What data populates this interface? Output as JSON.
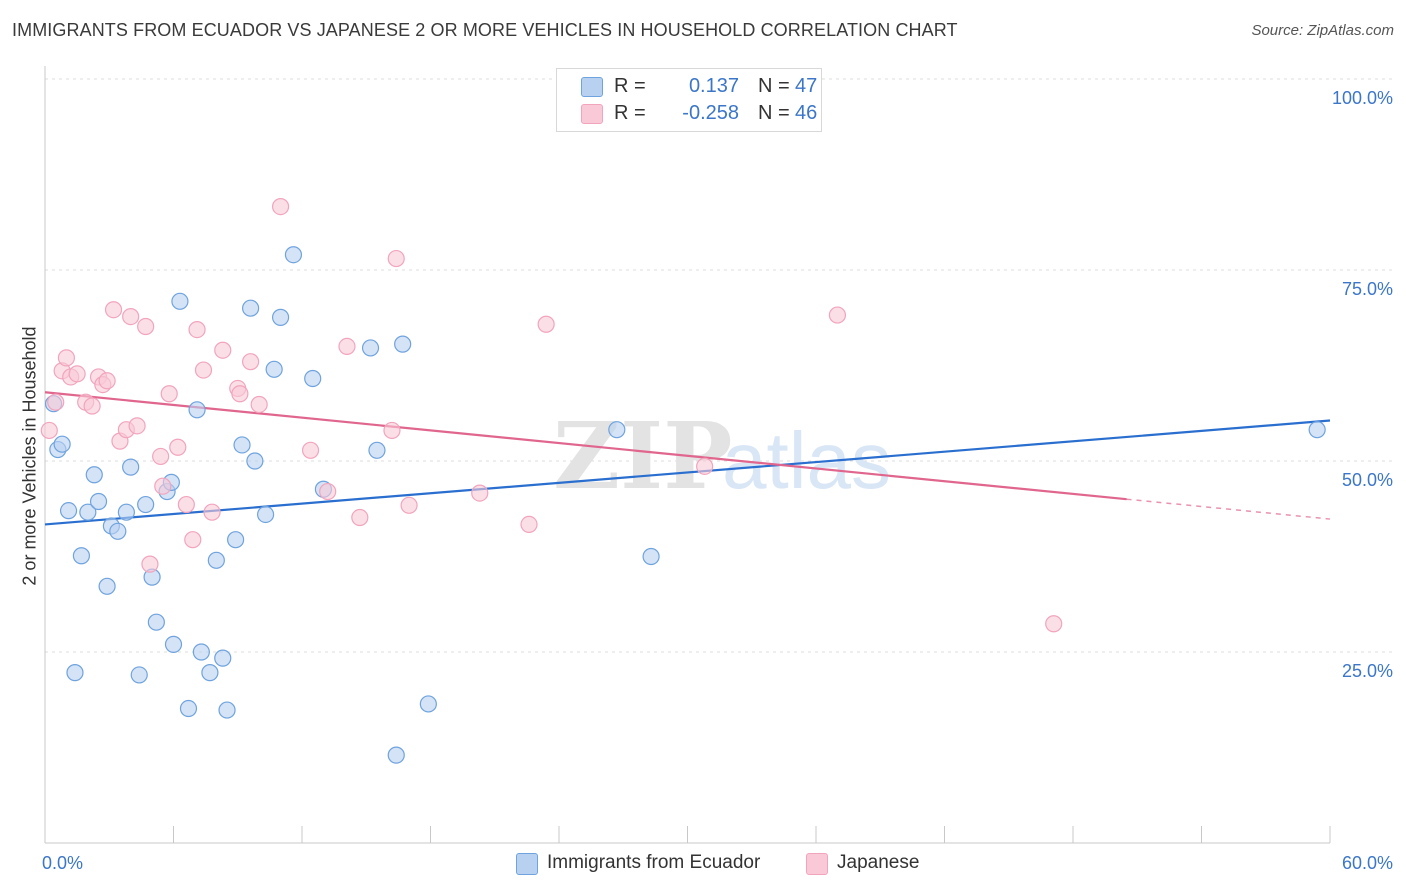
{
  "title": "IMMIGRANTS FROM ECUADOR VS JAPANESE 2 OR MORE VEHICLES IN HOUSEHOLD CORRELATION CHART",
  "source": "Source: ZipAtlas.com",
  "watermark": {
    "zip": "ZIP",
    "atlas": "atlas"
  },
  "legend": {
    "rows": [
      {
        "r_label": "R =",
        "r_value": "0.137",
        "n_label": "N =",
        "n_value": "47"
      },
      {
        "r_label": "R =",
        "r_value": "-0.258",
        "n_label": "N =",
        "n_value": "46"
      }
    ]
  },
  "bottom_legend": [
    "Immigrants from Ecuador",
    "Japanese"
  ],
  "chart_data": {
    "type": "scatter",
    "title": "IMMIGRANTS FROM ECUADOR VS JAPANESE 2 OR MORE VEHICLES IN HOUSEHOLD CORRELATION CHART",
    "xlabel": "",
    "ylabel": "2 or more Vehicles in Household",
    "xlim": [
      0,
      60
    ],
    "ylim": [
      0,
      100
    ],
    "x_tick_labels": [
      "0.0%",
      "60.0%"
    ],
    "y_ticks": [
      25,
      50,
      75,
      100
    ],
    "y_tick_labels": [
      "25.0%",
      "50.0%",
      "75.0%",
      "100.0%"
    ],
    "grid": true,
    "legend_position": "top-center",
    "series": [
      {
        "name": "Immigrants from Ecuador",
        "color": "#6fa3de",
        "fill": "#b9d1f1",
        "line_color": "#2a6fcf",
        "trend": {
          "x": [
            0,
            60
          ],
          "y": [
            41.7,
            55.3
          ]
        },
        "points": [
          [
            0.4,
            57.5
          ],
          [
            0.6,
            51.5
          ],
          [
            0.8,
            52.2
          ],
          [
            1.1,
            43.5
          ],
          [
            1.4,
            22.3
          ],
          [
            1.7,
            37.6
          ],
          [
            2.0,
            43.3
          ],
          [
            2.3,
            48.2
          ],
          [
            2.5,
            44.7
          ],
          [
            2.9,
            33.6
          ],
          [
            3.1,
            41.5
          ],
          [
            3.4,
            40.8
          ],
          [
            3.8,
            43.3
          ],
          [
            4.0,
            49.2
          ],
          [
            4.4,
            22.0
          ],
          [
            4.7,
            44.3
          ],
          [
            5.0,
            34.8
          ],
          [
            5.2,
            28.9
          ],
          [
            5.7,
            46.0
          ],
          [
            5.9,
            47.2
          ],
          [
            6.0,
            26.0
          ],
          [
            6.3,
            70.9
          ],
          [
            6.7,
            17.6
          ],
          [
            7.1,
            56.7
          ],
          [
            7.3,
            25.0
          ],
          [
            7.7,
            22.3
          ],
          [
            8.0,
            37.0
          ],
          [
            8.3,
            24.2
          ],
          [
            8.5,
            17.4
          ],
          [
            8.9,
            39.7
          ],
          [
            9.2,
            52.1
          ],
          [
            9.6,
            70.0
          ],
          [
            9.8,
            50.0
          ],
          [
            10.3,
            43.0
          ],
          [
            10.7,
            62.0
          ],
          [
            11.0,
            68.8
          ],
          [
            11.6,
            77.0
          ],
          [
            12.5,
            60.8
          ],
          [
            13.0,
            46.3
          ],
          [
            15.2,
            64.8
          ],
          [
            15.5,
            51.4
          ],
          [
            16.4,
            11.5
          ],
          [
            16.7,
            65.3
          ],
          [
            17.9,
            18.2
          ],
          [
            26.7,
            54.1
          ],
          [
            28.3,
            37.5
          ],
          [
            59.4,
            54.1
          ]
        ]
      },
      {
        "name": "Japanese",
        "color": "#f2a4bd",
        "fill": "#f9c9d7",
        "line_color": "#e0668e",
        "trend": {
          "x": [
            0,
            50.5
          ],
          "y": [
            59.0,
            45.0
          ]
        },
        "trend_dashed": {
          "x": [
            50.5,
            60
          ],
          "y": [
            45.0,
            42.4
          ]
        },
        "points": [
          [
            0.2,
            54.0
          ],
          [
            0.5,
            57.7
          ],
          [
            0.8,
            61.8
          ],
          [
            1.0,
            63.5
          ],
          [
            1.2,
            61.0
          ],
          [
            1.5,
            61.4
          ],
          [
            1.9,
            57.7
          ],
          [
            2.2,
            57.2
          ],
          [
            2.5,
            61.0
          ],
          [
            2.7,
            60.0
          ],
          [
            2.9,
            60.5
          ],
          [
            3.2,
            69.8
          ],
          [
            3.5,
            52.6
          ],
          [
            3.8,
            54.1
          ],
          [
            4.0,
            68.9
          ],
          [
            4.3,
            54.6
          ],
          [
            4.7,
            67.6
          ],
          [
            4.9,
            36.5
          ],
          [
            5.4,
            50.6
          ],
          [
            5.5,
            46.7
          ],
          [
            5.8,
            58.8
          ],
          [
            6.2,
            51.8
          ],
          [
            6.6,
            44.3
          ],
          [
            6.9,
            39.7
          ],
          [
            7.1,
            67.2
          ],
          [
            7.4,
            61.9
          ],
          [
            7.8,
            43.3
          ],
          [
            8.3,
            64.5
          ],
          [
            9.0,
            59.5
          ],
          [
            9.1,
            58.8
          ],
          [
            9.6,
            63.0
          ],
          [
            10.0,
            57.4
          ],
          [
            11.0,
            83.3
          ],
          [
            12.4,
            51.4
          ],
          [
            13.2,
            46.0
          ],
          [
            14.1,
            65.0
          ],
          [
            14.7,
            42.6
          ],
          [
            16.2,
            54.0
          ],
          [
            16.4,
            76.5
          ],
          [
            17.0,
            44.2
          ],
          [
            20.3,
            45.8
          ],
          [
            22.6,
            41.7
          ],
          [
            23.4,
            67.9
          ],
          [
            30.8,
            49.3
          ],
          [
            37.0,
            69.1
          ],
          [
            47.1,
            28.7
          ]
        ]
      }
    ]
  }
}
